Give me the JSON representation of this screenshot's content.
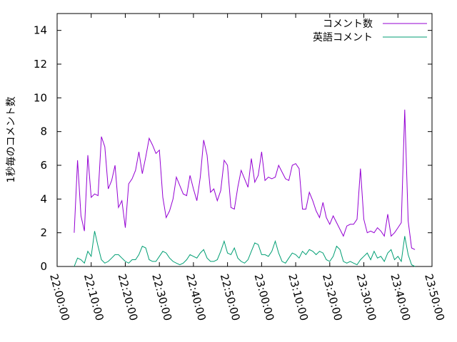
{
  "chart_data": {
    "type": "line",
    "title": "",
    "xlabel": "",
    "ylabel": "1秒毎のコメント数",
    "xlim": [
      "22:00:00",
      "23:50:00"
    ],
    "ylim": [
      0,
      15
    ],
    "x_ticks": [
      "22:00:00",
      "22:10:00",
      "22:20:00",
      "22:30:00",
      "22:40:00",
      "22:50:00",
      "23:00:00",
      "23:10:00",
      "23:20:00",
      "23:30:00",
      "23:40:00",
      "23:50:00"
    ],
    "y_ticks": [
      0,
      2,
      4,
      6,
      8,
      10,
      12,
      14
    ],
    "grid": false,
    "legend_position": "top-right",
    "x": [
      "22:05:00",
      "22:06:00",
      "22:07:00",
      "22:08:00",
      "22:09:00",
      "22:10:00",
      "22:11:00",
      "22:12:00",
      "22:13:00",
      "22:14:00",
      "22:15:00",
      "22:16:00",
      "22:17:00",
      "22:18:00",
      "22:19:00",
      "22:20:00",
      "22:21:00",
      "22:22:00",
      "22:23:00",
      "22:24:00",
      "22:25:00",
      "22:26:00",
      "22:27:00",
      "22:28:00",
      "22:29:00",
      "22:30:00",
      "22:31:00",
      "22:32:00",
      "22:33:00",
      "22:34:00",
      "22:35:00",
      "22:36:00",
      "22:37:00",
      "22:38:00",
      "22:39:00",
      "22:40:00",
      "22:41:00",
      "22:42:00",
      "22:43:00",
      "22:44:00",
      "22:45:00",
      "22:46:00",
      "22:47:00",
      "22:48:00",
      "22:49:00",
      "22:50:00",
      "22:51:00",
      "22:52:00",
      "22:53:00",
      "22:54:00",
      "22:55:00",
      "22:56:00",
      "22:57:00",
      "22:58:00",
      "22:59:00",
      "23:00:00",
      "23:01:00",
      "23:02:00",
      "23:03:00",
      "23:04:00",
      "23:05:00",
      "23:06:00",
      "23:07:00",
      "23:08:00",
      "23:09:00",
      "23:10:00",
      "23:11:00",
      "23:12:00",
      "23:13:00",
      "23:14:00",
      "23:15:00",
      "23:16:00",
      "23:17:00",
      "23:18:00",
      "23:19:00",
      "23:20:00",
      "23:21:00",
      "23:22:00",
      "23:23:00",
      "23:24:00",
      "23:25:00",
      "23:26:00",
      "23:27:00",
      "23:28:00",
      "23:29:00",
      "23:30:00",
      "23:31:00",
      "23:32:00",
      "23:33:00",
      "23:34:00",
      "23:35:00",
      "23:36:00",
      "23:37:00",
      "23:38:00",
      "23:39:00",
      "23:40:00",
      "23:41:00",
      "23:42:00",
      "23:43:00",
      "23:44:00",
      "23:45:00"
    ],
    "series": [
      {
        "name": "コメント数",
        "color": "#9400d3",
        "values": [
          2.0,
          6.3,
          3.0,
          2.1,
          6.6,
          4.1,
          4.3,
          4.2,
          7.7,
          7.1,
          4.6,
          5.1,
          6.0,
          3.5,
          3.9,
          2.3,
          4.9,
          5.2,
          5.7,
          6.8,
          5.5,
          6.5,
          7.6,
          7.2,
          6.7,
          6.9,
          4.1,
          2.9,
          3.3,
          4.0,
          5.3,
          4.8,
          4.3,
          4.2,
          5.4,
          4.6,
          3.9,
          5.3,
          7.5,
          6.6,
          4.4,
          4.6,
          3.9,
          4.5,
          6.3,
          6.0,
          3.5,
          3.4,
          4.7,
          5.7,
          5.2,
          4.7,
          6.4,
          5.0,
          5.4,
          6.8,
          5.1,
          5.3,
          5.2,
          5.3,
          6.0,
          5.6,
          5.2,
          5.1,
          6.0,
          6.1,
          5.8,
          3.4,
          3.4,
          4.4,
          3.9,
          3.3,
          2.9,
          3.8,
          2.9,
          2.5,
          3.0,
          2.6,
          2.2,
          1.8,
          2.4,
          2.5,
          2.5,
          2.8,
          5.8,
          2.8,
          2.0,
          2.1,
          2.0,
          2.3,
          2.1,
          1.8,
          3.1,
          1.8,
          2.0,
          2.3,
          2.6,
          9.3,
          2.7,
          1.1,
          1.0
        ],
        "note": ""
      },
      {
        "name": "英語コメント",
        "color": "#009e73",
        "values": [
          0.0,
          0.5,
          0.4,
          0.2,
          0.9,
          0.6,
          2.1,
          1.2,
          0.4,
          0.2,
          0.3,
          0.5,
          0.7,
          0.7,
          0.5,
          0.3,
          0.2,
          0.4,
          0.4,
          0.7,
          1.2,
          1.1,
          0.4,
          0.3,
          0.3,
          0.6,
          0.9,
          0.8,
          0.5,
          0.3,
          0.2,
          0.1,
          0.2,
          0.4,
          0.7,
          0.6,
          0.5,
          0.8,
          1.0,
          0.5,
          0.3,
          0.3,
          0.4,
          0.9,
          1.5,
          0.8,
          0.7,
          1.1,
          0.5,
          0.3,
          0.2,
          0.4,
          0.9,
          1.4,
          1.3,
          0.7,
          0.7,
          0.6,
          0.9,
          1.5,
          0.8,
          0.3,
          0.2,
          0.5,
          0.8,
          0.7,
          0.5,
          0.9,
          0.7,
          1.0,
          0.9,
          0.7,
          0.9,
          0.8,
          0.4,
          0.3,
          0.6,
          1.2,
          1.0,
          0.3,
          0.2,
          0.3,
          0.2,
          0.1,
          0.4,
          0.6,
          0.8,
          0.4,
          0.9,
          0.5,
          0.6,
          0.3,
          0.8,
          1.0,
          0.4,
          0.6,
          0.3,
          1.8,
          0.7,
          0.1,
          0.0
        ]
      }
    ]
  }
}
